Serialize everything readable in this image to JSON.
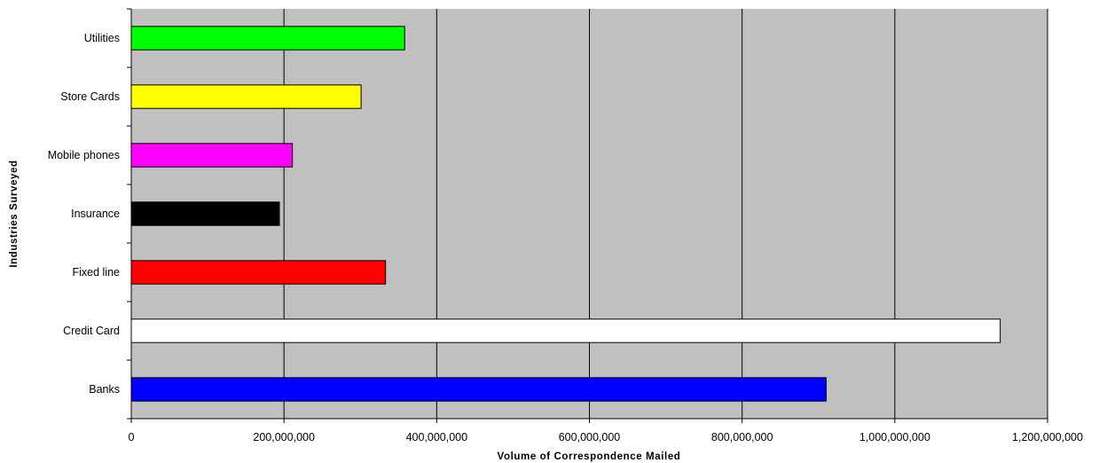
{
  "chart_data": {
    "type": "bar",
    "orientation": "horizontal",
    "categories": [
      "Utilities",
      "Store Cards",
      "Mobile phones",
      "Insurance",
      "Fixed line",
      "Credit Card",
      "Banks"
    ],
    "values": [
      358000000,
      301000000,
      211000000,
      194000000,
      333000000,
      1138000000,
      910000000
    ],
    "bar_colors": [
      "#00ff00",
      "#ffff00",
      "#ff00ff",
      "#000000",
      "#ff0000",
      "#ffffff",
      "#0000ff"
    ],
    "xlabel": "Volume of Correspondence Mailed",
    "ylabel": "Industries Surveyed",
    "xlim": [
      0,
      1200000000
    ],
    "xticks": [
      0,
      200000000,
      400000000,
      600000000,
      800000000,
      1000000000,
      1200000000
    ],
    "xtick_labels": [
      "0",
      "200,000,000",
      "400,000,000",
      "600,000,000",
      "800,000,000",
      "1,000,000,000",
      "1,200,000,000"
    ],
    "grid": "vertical",
    "legend": "none",
    "plot_background": "#c0c0c0"
  }
}
